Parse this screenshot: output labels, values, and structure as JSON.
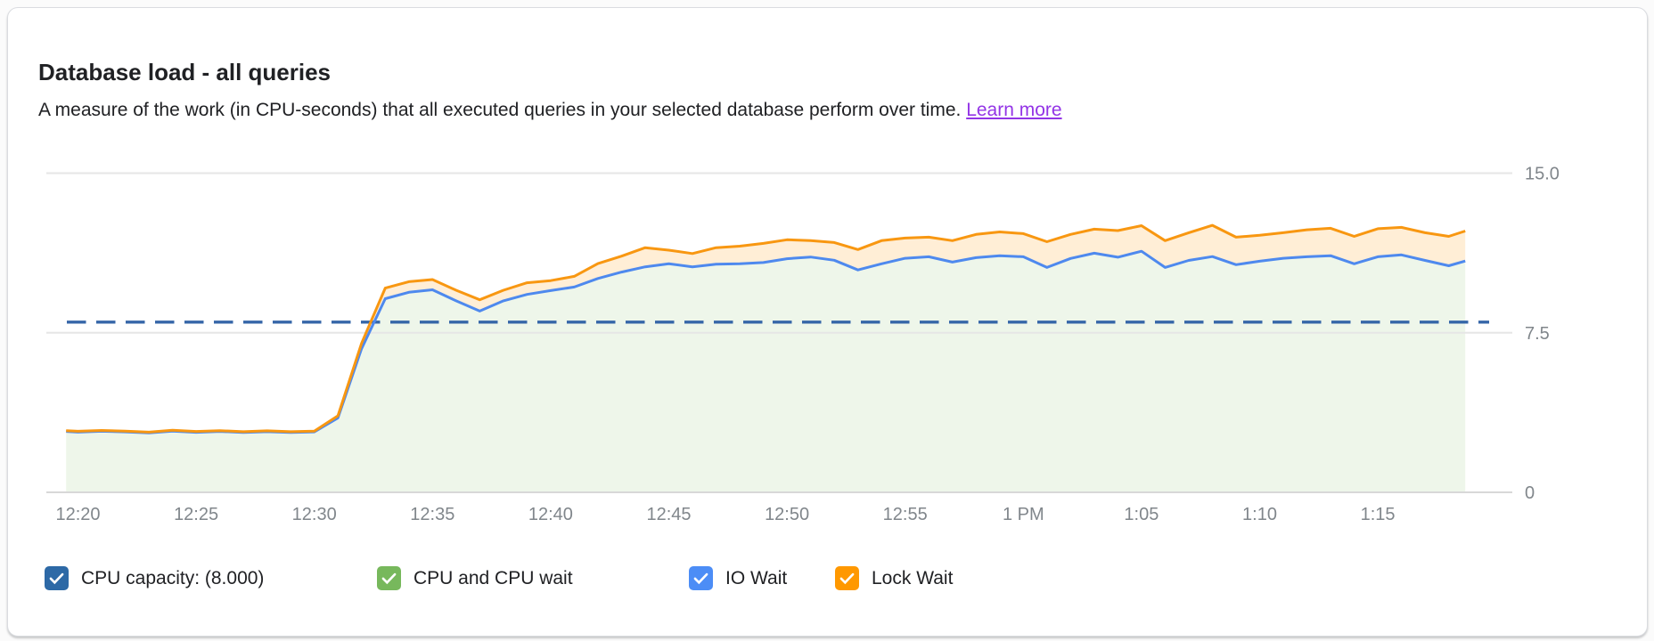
{
  "header": {
    "title": "Database load - all queries",
    "description": "A measure of the work (in CPU-seconds) that all executed queries in your selected database perform over time.",
    "learn_more_label": "Learn more"
  },
  "colors": {
    "title_text": "#202124",
    "axis_label_text": "#80868b",
    "link_purple": "#9334e6",
    "gridline": "#e6e6e6",
    "baseline": "#d8d8d8",
    "capacity_checkbox_blue": "#2d69a6",
    "cpu_wait_green": "#77b85c",
    "io_wait_blue": "#4c8df6",
    "lock_wait_orange": "#ff9800"
  },
  "legend": {
    "items": [
      {
        "id": "cpu-capacity",
        "label": "CPU capacity: (8.000)",
        "color": "#2d69a6",
        "checked": true
      },
      {
        "id": "cpu-and-cpu-wait",
        "label": "CPU and CPU wait",
        "color": "#77b85c",
        "checked": true
      },
      {
        "id": "io-wait",
        "label": "IO Wait",
        "color": "#4c8df6",
        "checked": true
      },
      {
        "id": "lock-wait",
        "label": "Lock Wait",
        "color": "#ff9800",
        "checked": true
      }
    ]
  },
  "chart_data": {
    "type": "area",
    "title": "Database load - all queries",
    "ylabel": "CPU-seconds",
    "ylim": [
      0,
      15
    ],
    "grid": "horizontal",
    "legend_position": "bottom",
    "y_ticks": [
      {
        "label": "15.0",
        "value": 15
      },
      {
        "label": "7.5",
        "value": 7.5
      },
      {
        "label": "0",
        "value": 0
      }
    ],
    "x_ticks": [
      {
        "label": "12:20",
        "minute": 0
      },
      {
        "label": "12:25",
        "minute": 5
      },
      {
        "label": "12:30",
        "minute": 10
      },
      {
        "label": "12:35",
        "minute": 15
      },
      {
        "label": "12:40",
        "minute": 20
      },
      {
        "label": "12:45",
        "minute": 25
      },
      {
        "label": "12:50",
        "minute": 30
      },
      {
        "label": "12:55",
        "minute": 35
      },
      {
        "label": "1 PM",
        "minute": 40
      },
      {
        "label": "1:05",
        "minute": 45
      },
      {
        "label": "1:10",
        "minute": 50
      },
      {
        "label": "1:15",
        "minute": 55
      }
    ],
    "capacity_line": {
      "label": "CPU capacity: (8.000)",
      "value": 8,
      "color": "#3566a8",
      "style": "dashed"
    },
    "x_minutes": [
      -0.5,
      0,
      1,
      2,
      3,
      4,
      5,
      6,
      7,
      8,
      9,
      10,
      11,
      12,
      13,
      14,
      15,
      16,
      17,
      18,
      19,
      20,
      21,
      22,
      23,
      24,
      25,
      26,
      27,
      28,
      29,
      30,
      31,
      32,
      33,
      34,
      35,
      36,
      37,
      38,
      39,
      40,
      41,
      42,
      43,
      44,
      45,
      46,
      47,
      48,
      49,
      50,
      51,
      52,
      53,
      54,
      55,
      56,
      57,
      58,
      58.7
    ],
    "series": [
      {
        "id": "io_wait",
        "name": "IO Wait",
        "color": "#4e89ee",
        "fill_below": "rgba(124,184,92,0.13)",
        "fill_represents": "CPU and CPU wait",
        "values": [
          2.86,
          2.83,
          2.87,
          2.84,
          2.79,
          2.88,
          2.82,
          2.86,
          2.81,
          2.85,
          2.81,
          2.84,
          3.5,
          6.75,
          9.1,
          9.4,
          9.52,
          9.0,
          8.52,
          9.0,
          9.3,
          9.48,
          9.65,
          10.05,
          10.35,
          10.6,
          10.74,
          10.6,
          10.72,
          10.74,
          10.8,
          10.98,
          11.06,
          10.91,
          10.45,
          10.74,
          11.0,
          11.07,
          10.82,
          11.03,
          11.12,
          11.07,
          10.57,
          10.99,
          11.24,
          11.05,
          11.33,
          10.57,
          10.9,
          11.08,
          10.7,
          10.86,
          11.0,
          11.07,
          11.12,
          10.74,
          11.07,
          11.16,
          10.9,
          10.65,
          10.87
        ]
      },
      {
        "id": "lock_wait",
        "name": "Lock Wait",
        "color": "#f89711",
        "fill_below": "rgba(255,152,0,0.16)",
        "fill_represents": "Lock Wait",
        "values": [
          2.9,
          2.87,
          2.91,
          2.88,
          2.83,
          2.92,
          2.86,
          2.9,
          2.85,
          2.89,
          2.85,
          2.88,
          3.6,
          7.0,
          9.6,
          9.9,
          10.0,
          9.5,
          9.05,
          9.5,
          9.85,
          9.95,
          10.15,
          10.75,
          11.1,
          11.5,
          11.38,
          11.22,
          11.5,
          11.57,
          11.7,
          11.87,
          11.83,
          11.74,
          11.41,
          11.83,
          11.95,
          11.99,
          11.83,
          12.12,
          12.24,
          12.16,
          11.78,
          12.12,
          12.37,
          12.3,
          12.53,
          11.83,
          12.2,
          12.55,
          11.99,
          12.08,
          12.2,
          12.34,
          12.41,
          12.03,
          12.39,
          12.45,
          12.2,
          12.03,
          12.28
        ]
      }
    ]
  }
}
